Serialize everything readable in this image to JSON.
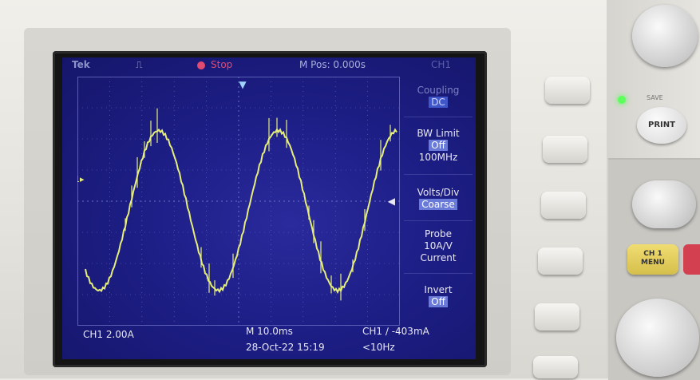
{
  "topbar": {
    "brand": "Tek",
    "run_state": "Stop",
    "horizontal_position": "M Pos: 0.000s",
    "menu_title": "CH1"
  },
  "menu": {
    "coupling_label": "Coupling",
    "coupling_value": "DC",
    "bw_limit_label": "BW Limit",
    "bw_limit_value": "Off",
    "bw_limit_freq": "100MHz",
    "volts_div_label": "Volts/Div",
    "volts_div_value": "Coarse",
    "probe_label": "Probe",
    "probe_scale": "10A/V",
    "probe_type": "Current",
    "invert_label": "Invert",
    "invert_value": "Off"
  },
  "markers": {
    "channel_ground": "1▸"
  },
  "status": {
    "ch1_scale": "CH1  2.00A",
    "timebase": "M 10.0ms",
    "datetime": "28-Oct-22 15:19",
    "trigger": "CH1  ∕  -403mA",
    "frequency": "<10Hz"
  },
  "front_panel": {
    "save_label": "SAVE",
    "print_label": "PRINT",
    "ch1_menu_line1": "CH 1",
    "ch1_menu_line2": "MENU"
  },
  "colors": {
    "trace": "#e6ef7a",
    "screen_bg": "#1d1e86",
    "grid": "#6b6fc4",
    "stop_indicator": "#e24a72",
    "ch1_button": "#e8d35e"
  },
  "waveform": {
    "type": "sine",
    "amplitude_divisions": 2.6,
    "period_divisions": 3.7,
    "phase_start_divisions": -1.6
  }
}
